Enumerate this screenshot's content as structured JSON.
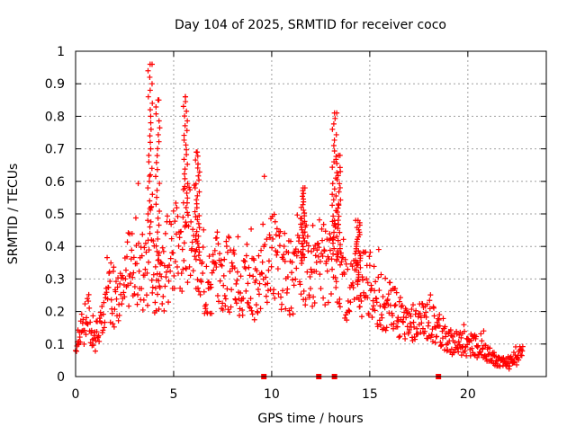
{
  "chart_data": {
    "type": "scatter",
    "title": "Day 104 of 2025, SRMTID for receiver coco",
    "xlabel": "GPS time / hours",
    "ylabel": "SRMTID / TECUs",
    "xlim": [
      0,
      24
    ],
    "ylim": [
      0,
      1
    ],
    "x_ticks": [
      0,
      5,
      10,
      15,
      20
    ],
    "x_tick_labels": [
      "0",
      "5",
      "10",
      "15",
      "20"
    ],
    "y_ticks": [
      0,
      0.1,
      0.2,
      0.3,
      0.4,
      0.5,
      0.6,
      0.7,
      0.8,
      0.9,
      1
    ],
    "y_tick_labels": [
      "0",
      "0.1",
      "0.2",
      "0.3",
      "0.4",
      "0.5",
      "0.6",
      "0.7",
      "0.8",
      "0.9",
      "1"
    ],
    "grid": true,
    "marker": "+",
    "color": "#ff0000",
    "envelope": {
      "x": [
        0,
        0.3,
        0.6,
        1,
        1.4,
        1.8,
        2.2,
        2.6,
        3,
        3.3,
        3.6,
        3.8,
        4,
        4.3,
        4.6,
        5,
        5.3,
        5.6,
        6,
        6.4,
        6.8,
        7.2,
        7.6,
        8,
        8.4,
        8.8,
        9.2,
        9.6,
        10,
        10.5,
        11,
        11.5,
        12,
        12.5,
        13,
        13.3,
        13.6,
        14,
        14.5,
        15,
        15.5,
        16,
        16.5,
        17,
        17.5,
        18,
        18.5,
        19,
        19.5,
        20,
        20.5,
        21,
        21.5,
        22,
        22.5,
        22.8
      ],
      "y": [
        0.09,
        0.14,
        0.18,
        0.12,
        0.17,
        0.26,
        0.22,
        0.3,
        0.38,
        0.33,
        0.3,
        0.42,
        0.3,
        0.26,
        0.33,
        0.45,
        0.34,
        0.46,
        0.42,
        0.3,
        0.29,
        0.33,
        0.32,
        0.31,
        0.27,
        0.3,
        0.27,
        0.33,
        0.38,
        0.33,
        0.3,
        0.35,
        0.34,
        0.37,
        0.32,
        0.38,
        0.27,
        0.26,
        0.29,
        0.3,
        0.23,
        0.22,
        0.18,
        0.17,
        0.16,
        0.19,
        0.15,
        0.11,
        0.1,
        0.1,
        0.09,
        0.07,
        0.05,
        0.04,
        0.05,
        0.08
      ]
    },
    "spikes": [
      {
        "x": 3.8,
        "y": 0.96
      },
      {
        "x": 4.2,
        "y": 0.85
      },
      {
        "x": 5.6,
        "y": 0.86
      },
      {
        "x": 6.2,
        "y": 0.69
      },
      {
        "x": 11.6,
        "y": 0.58
      },
      {
        "x": 13.2,
        "y": 0.81
      },
      {
        "x": 13.4,
        "y": 0.68
      },
      {
        "x": 14.4,
        "y": 0.48
      }
    ],
    "gap_markers_x": [
      9.6,
      12.4,
      13.2,
      18.5
    ]
  }
}
